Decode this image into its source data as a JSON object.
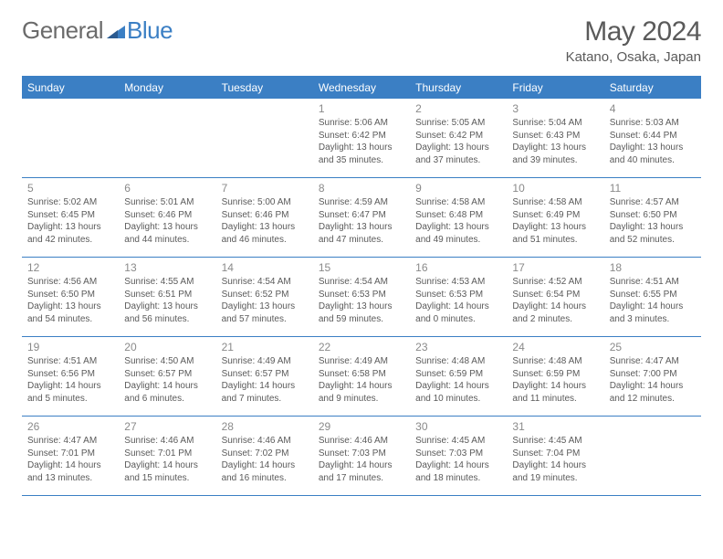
{
  "brand": {
    "part1": "General",
    "part2": "Blue"
  },
  "title": "May 2024",
  "location": "Katano, Osaka, Japan",
  "header_bg": "#3b7fc4",
  "weekdays": [
    "Sunday",
    "Monday",
    "Tuesday",
    "Wednesday",
    "Thursday",
    "Friday",
    "Saturday"
  ],
  "weeks": [
    [
      {
        "n": "",
        "sr": "",
        "ss": "",
        "dl": ""
      },
      {
        "n": "",
        "sr": "",
        "ss": "",
        "dl": ""
      },
      {
        "n": "",
        "sr": "",
        "ss": "",
        "dl": ""
      },
      {
        "n": "1",
        "sr": "5:06 AM",
        "ss": "6:42 PM",
        "dl": "13 hours and 35 minutes."
      },
      {
        "n": "2",
        "sr": "5:05 AM",
        "ss": "6:42 PM",
        "dl": "13 hours and 37 minutes."
      },
      {
        "n": "3",
        "sr": "5:04 AM",
        "ss": "6:43 PM",
        "dl": "13 hours and 39 minutes."
      },
      {
        "n": "4",
        "sr": "5:03 AM",
        "ss": "6:44 PM",
        "dl": "13 hours and 40 minutes."
      }
    ],
    [
      {
        "n": "5",
        "sr": "5:02 AM",
        "ss": "6:45 PM",
        "dl": "13 hours and 42 minutes."
      },
      {
        "n": "6",
        "sr": "5:01 AM",
        "ss": "6:46 PM",
        "dl": "13 hours and 44 minutes."
      },
      {
        "n": "7",
        "sr": "5:00 AM",
        "ss": "6:46 PM",
        "dl": "13 hours and 46 minutes."
      },
      {
        "n": "8",
        "sr": "4:59 AM",
        "ss": "6:47 PM",
        "dl": "13 hours and 47 minutes."
      },
      {
        "n": "9",
        "sr": "4:58 AM",
        "ss": "6:48 PM",
        "dl": "13 hours and 49 minutes."
      },
      {
        "n": "10",
        "sr": "4:58 AM",
        "ss": "6:49 PM",
        "dl": "13 hours and 51 minutes."
      },
      {
        "n": "11",
        "sr": "4:57 AM",
        "ss": "6:50 PM",
        "dl": "13 hours and 52 minutes."
      }
    ],
    [
      {
        "n": "12",
        "sr": "4:56 AM",
        "ss": "6:50 PM",
        "dl": "13 hours and 54 minutes."
      },
      {
        "n": "13",
        "sr": "4:55 AM",
        "ss": "6:51 PM",
        "dl": "13 hours and 56 minutes."
      },
      {
        "n": "14",
        "sr": "4:54 AM",
        "ss": "6:52 PM",
        "dl": "13 hours and 57 minutes."
      },
      {
        "n": "15",
        "sr": "4:54 AM",
        "ss": "6:53 PM",
        "dl": "13 hours and 59 minutes."
      },
      {
        "n": "16",
        "sr": "4:53 AM",
        "ss": "6:53 PM",
        "dl": "14 hours and 0 minutes."
      },
      {
        "n": "17",
        "sr": "4:52 AM",
        "ss": "6:54 PM",
        "dl": "14 hours and 2 minutes."
      },
      {
        "n": "18",
        "sr": "4:51 AM",
        "ss": "6:55 PM",
        "dl": "14 hours and 3 minutes."
      }
    ],
    [
      {
        "n": "19",
        "sr": "4:51 AM",
        "ss": "6:56 PM",
        "dl": "14 hours and 5 minutes."
      },
      {
        "n": "20",
        "sr": "4:50 AM",
        "ss": "6:57 PM",
        "dl": "14 hours and 6 minutes."
      },
      {
        "n": "21",
        "sr": "4:49 AM",
        "ss": "6:57 PM",
        "dl": "14 hours and 7 minutes."
      },
      {
        "n": "22",
        "sr": "4:49 AM",
        "ss": "6:58 PM",
        "dl": "14 hours and 9 minutes."
      },
      {
        "n": "23",
        "sr": "4:48 AM",
        "ss": "6:59 PM",
        "dl": "14 hours and 10 minutes."
      },
      {
        "n": "24",
        "sr": "4:48 AM",
        "ss": "6:59 PM",
        "dl": "14 hours and 11 minutes."
      },
      {
        "n": "25",
        "sr": "4:47 AM",
        "ss": "7:00 PM",
        "dl": "14 hours and 12 minutes."
      }
    ],
    [
      {
        "n": "26",
        "sr": "4:47 AM",
        "ss": "7:01 PM",
        "dl": "14 hours and 13 minutes."
      },
      {
        "n": "27",
        "sr": "4:46 AM",
        "ss": "7:01 PM",
        "dl": "14 hours and 15 minutes."
      },
      {
        "n": "28",
        "sr": "4:46 AM",
        "ss": "7:02 PM",
        "dl": "14 hours and 16 minutes."
      },
      {
        "n": "29",
        "sr": "4:46 AM",
        "ss": "7:03 PM",
        "dl": "14 hours and 17 minutes."
      },
      {
        "n": "30",
        "sr": "4:45 AM",
        "ss": "7:03 PM",
        "dl": "14 hours and 18 minutes."
      },
      {
        "n": "31",
        "sr": "4:45 AM",
        "ss": "7:04 PM",
        "dl": "14 hours and 19 minutes."
      },
      {
        "n": "",
        "sr": "",
        "ss": "",
        "dl": ""
      }
    ]
  ]
}
